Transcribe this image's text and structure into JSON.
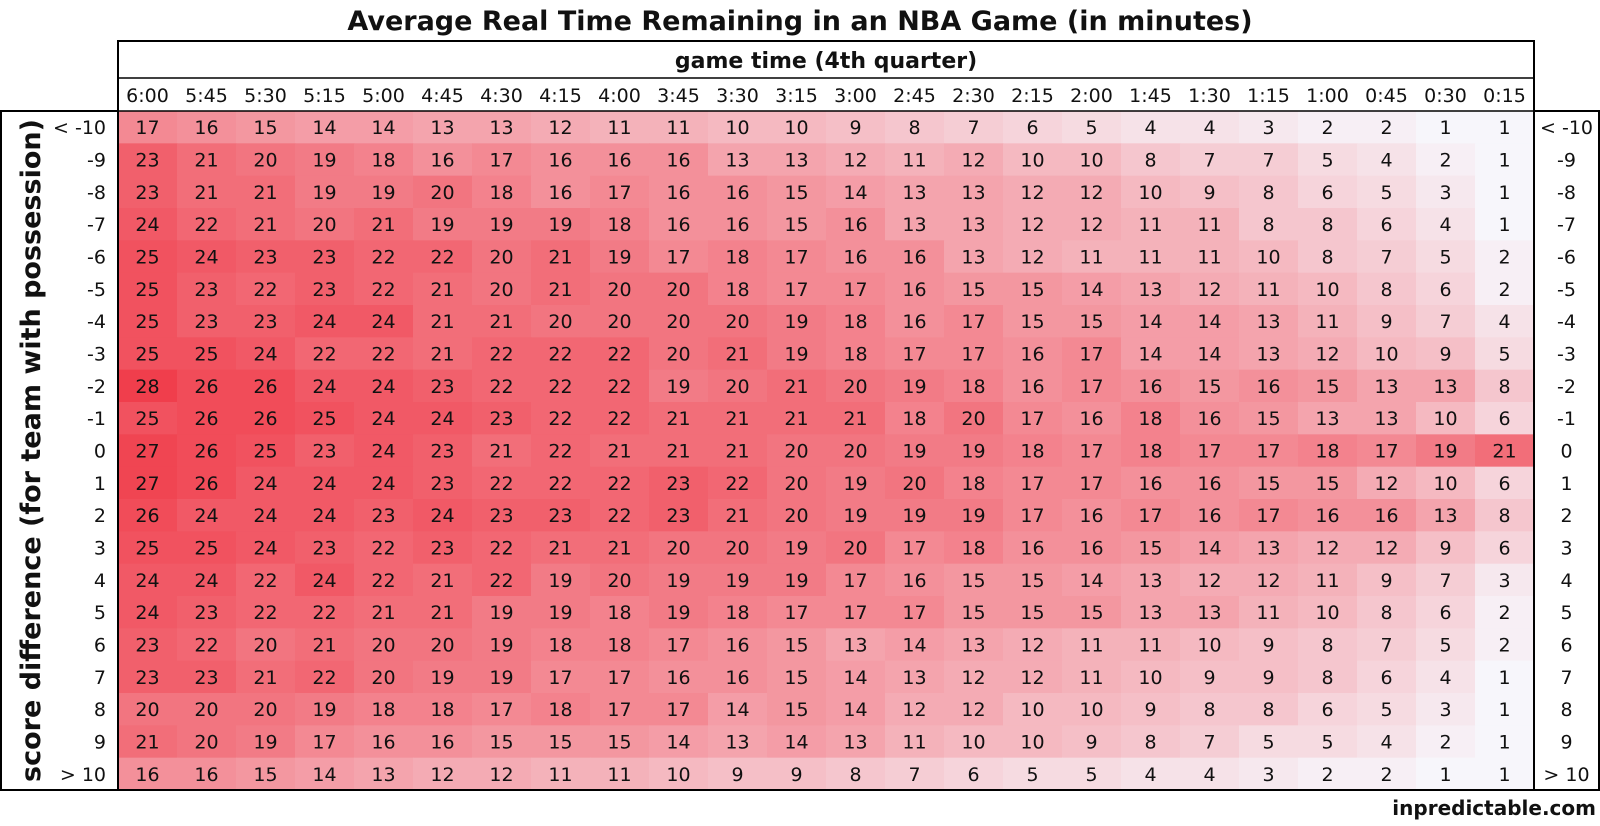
{
  "title": "Average Real Time Remaining in an NBA Game (in minutes)",
  "watermark": "inpredictable.com",
  "colors": {
    "low": "#f7f6fb",
    "high": "#f03e4c",
    "border": "#000000",
    "text": "#111111"
  },
  "chart_data": {
    "type": "heatmap",
    "title": "Average Real Time Remaining in an NBA Game (in minutes)",
    "xlabel": "game time (4th quarter)",
    "ylabel": "score difference (for team with possession)",
    "x": [
      "6:00",
      "5:45",
      "5:30",
      "5:15",
      "5:00",
      "4:45",
      "4:30",
      "4:15",
      "4:00",
      "3:45",
      "3:30",
      "3:15",
      "3:00",
      "2:45",
      "2:30",
      "2:15",
      "2:00",
      "1:45",
      "1:30",
      "1:15",
      "1:00",
      "0:45",
      "0:30",
      "0:15"
    ],
    "y": [
      "< -10",
      "-9",
      "-8",
      "-7",
      "-6",
      "-5",
      "-4",
      "-3",
      "-2",
      "-1",
      "0",
      "1",
      "2",
      "3",
      "4",
      "5",
      "6",
      "7",
      "8",
      "9",
      "> 10"
    ],
    "values": [
      [
        17,
        16,
        15,
        14,
        14,
        13,
        13,
        12,
        11,
        11,
        10,
        10,
        9,
        8,
        7,
        6,
        5,
        4,
        4,
        3,
        2,
        2,
        1,
        1
      ],
      [
        23,
        21,
        20,
        19,
        18,
        16,
        17,
        16,
        16,
        16,
        13,
        13,
        12,
        11,
        12,
        10,
        10,
        8,
        7,
        7,
        5,
        4,
        2,
        1
      ],
      [
        23,
        21,
        21,
        19,
        19,
        20,
        18,
        16,
        17,
        16,
        16,
        15,
        14,
        13,
        13,
        12,
        12,
        10,
        9,
        8,
        6,
        5,
        3,
        1
      ],
      [
        24,
        22,
        21,
        20,
        21,
        19,
        19,
        19,
        18,
        16,
        16,
        15,
        16,
        13,
        13,
        12,
        12,
        11,
        11,
        8,
        8,
        6,
        4,
        1
      ],
      [
        25,
        24,
        23,
        23,
        22,
        22,
        20,
        21,
        19,
        17,
        18,
        17,
        16,
        16,
        13,
        12,
        11,
        11,
        11,
        10,
        8,
        7,
        5,
        2
      ],
      [
        25,
        23,
        22,
        23,
        22,
        21,
        20,
        21,
        20,
        20,
        18,
        17,
        17,
        16,
        15,
        15,
        14,
        13,
        12,
        11,
        10,
        8,
        6,
        2
      ],
      [
        25,
        23,
        23,
        24,
        24,
        21,
        21,
        20,
        20,
        20,
        20,
        19,
        18,
        16,
        17,
        15,
        15,
        14,
        14,
        13,
        11,
        9,
        7,
        4
      ],
      [
        25,
        25,
        24,
        22,
        22,
        21,
        22,
        22,
        22,
        20,
        21,
        19,
        18,
        17,
        17,
        16,
        17,
        14,
        14,
        13,
        12,
        10,
        9,
        5
      ],
      [
        28,
        26,
        26,
        24,
        24,
        23,
        22,
        22,
        22,
        19,
        20,
        21,
        20,
        19,
        18,
        16,
        17,
        16,
        15,
        16,
        15,
        13,
        13,
        8
      ],
      [
        25,
        26,
        26,
        25,
        24,
        24,
        23,
        22,
        22,
        21,
        21,
        21,
        21,
        18,
        20,
        17,
        16,
        18,
        16,
        15,
        13,
        13,
        10,
        6
      ],
      [
        27,
        26,
        25,
        23,
        24,
        23,
        21,
        22,
        21,
        21,
        21,
        20,
        20,
        19,
        19,
        18,
        17,
        18,
        17,
        17,
        18,
        17,
        19,
        21
      ],
      [
        27,
        26,
        24,
        24,
        24,
        23,
        22,
        22,
        22,
        23,
        22,
        20,
        19,
        20,
        18,
        17,
        17,
        16,
        16,
        15,
        15,
        12,
        10,
        6
      ],
      [
        26,
        24,
        24,
        24,
        23,
        24,
        23,
        23,
        22,
        23,
        21,
        20,
        19,
        19,
        19,
        17,
        16,
        17,
        16,
        17,
        16,
        16,
        13,
        8
      ],
      [
        25,
        25,
        24,
        23,
        22,
        23,
        22,
        21,
        21,
        20,
        20,
        19,
        20,
        17,
        18,
        16,
        16,
        15,
        14,
        13,
        12,
        12,
        9,
        6
      ],
      [
        24,
        24,
        22,
        24,
        22,
        21,
        22,
        19,
        20,
        19,
        19,
        19,
        17,
        16,
        15,
        15,
        14,
        13,
        12,
        12,
        11,
        9,
        7,
        3
      ],
      [
        24,
        23,
        22,
        22,
        21,
        21,
        19,
        19,
        18,
        19,
        18,
        17,
        17,
        17,
        15,
        15,
        15,
        13,
        13,
        11,
        10,
        8,
        6,
        2
      ],
      [
        23,
        22,
        20,
        21,
        20,
        20,
        19,
        18,
        18,
        17,
        16,
        15,
        13,
        14,
        13,
        12,
        11,
        11,
        10,
        9,
        8,
        7,
        5,
        2
      ],
      [
        23,
        23,
        21,
        22,
        20,
        19,
        19,
        17,
        17,
        16,
        16,
        15,
        14,
        13,
        12,
        12,
        11,
        10,
        9,
        9,
        8,
        6,
        4,
        1
      ],
      [
        20,
        20,
        20,
        19,
        18,
        18,
        17,
        18,
        17,
        17,
        14,
        15,
        14,
        12,
        12,
        10,
        10,
        9,
        8,
        8,
        6,
        5,
        3,
        1
      ],
      [
        21,
        20,
        19,
        17,
        16,
        16,
        15,
        15,
        15,
        14,
        13,
        14,
        13,
        11,
        10,
        10,
        9,
        8,
        7,
        5,
        5,
        4,
        2,
        1
      ],
      [
        16,
        16,
        15,
        14,
        13,
        12,
        12,
        11,
        11,
        10,
        9,
        9,
        8,
        7,
        6,
        5,
        5,
        4,
        4,
        3,
        2,
        2,
        1,
        1
      ]
    ]
  }
}
